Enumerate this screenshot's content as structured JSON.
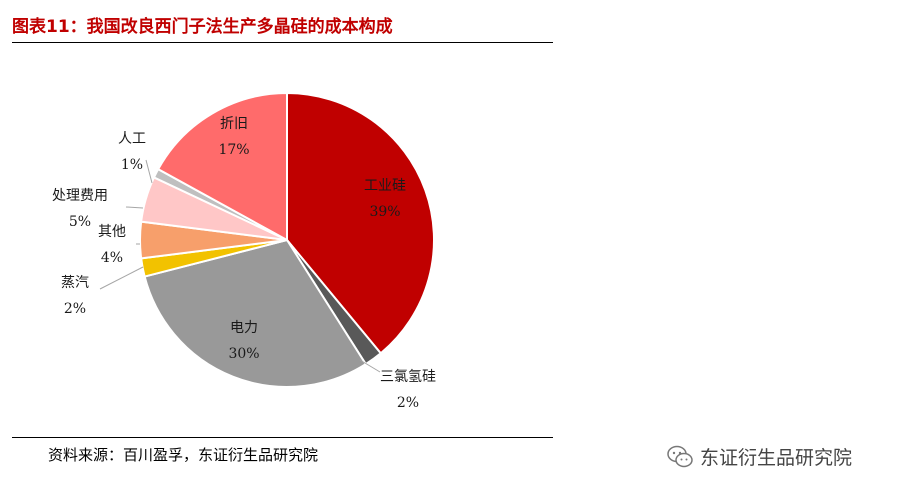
{
  "header": {
    "title": "图表11：我国改良西门子法生产多晶硅的成本构成"
  },
  "footer": {
    "source": "资料来源：百川盈孚，东证衍生品研究院"
  },
  "watermark": {
    "text": "东证衍生品研究院",
    "icon": "wechat-icon"
  },
  "chart_data": {
    "type": "pie",
    "start_angle_deg": 0,
    "direction": "clockwise",
    "slices": [
      {
        "label": "工业硅",
        "value": 39,
        "value_text": "39%",
        "color": "#c00000"
      },
      {
        "label": "三氯氢硅",
        "value": 2,
        "value_text": "2%",
        "color": "#595959"
      },
      {
        "label": "电力",
        "value": 30,
        "value_text": "30%",
        "color": "#999999"
      },
      {
        "label": "蒸汽",
        "value": 2,
        "value_text": "2%",
        "color": "#f2c200"
      },
      {
        "label": "其他",
        "value": 4,
        "value_text": "4%",
        "color": "#f79f6b"
      },
      {
        "label": "处理费用",
        "value": 5,
        "value_text": "5%",
        "color": "#ffc7c7"
      },
      {
        "label": "人工",
        "value": 1,
        "value_text": "1%",
        "color": "#bfbfbf"
      },
      {
        "label": "折旧",
        "value": 17,
        "value_text": "17%",
        "color": "#ff6b6b"
      }
    ]
  }
}
